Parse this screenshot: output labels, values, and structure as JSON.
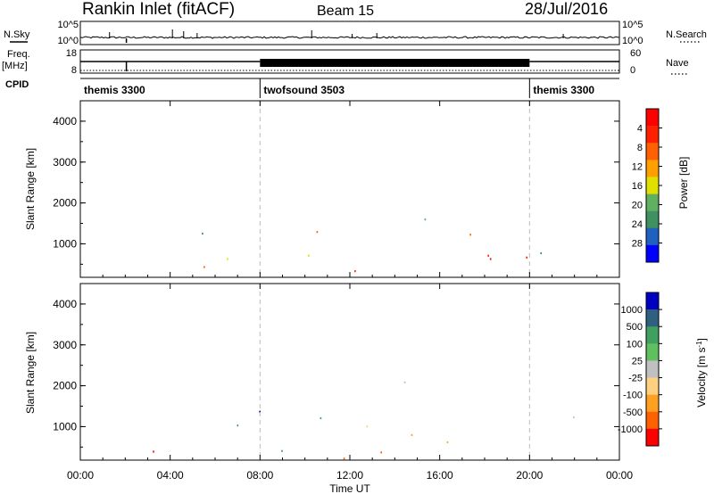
{
  "header": {
    "station": "Rankin Inlet (fitACF)",
    "beam": "Beam 15",
    "date": "28/Jul/2016"
  },
  "left_labels": {
    "nsky": "N.Sky",
    "freq": "Freq.",
    "freq_unit": "[MHz]",
    "cpid": "CPID"
  },
  "right_labels": {
    "nsearch": "N.Search",
    "nave": "Nave"
  },
  "noise_panel": {
    "left_ticks": [
      "10^5",
      "10^0"
    ],
    "right_ticks": [
      "10^5",
      "10^0"
    ]
  },
  "freq_panel": {
    "left_ticks": [
      "18",
      "8"
    ],
    "right_ticks": [
      "60",
      "0"
    ]
  },
  "cpid_segments": [
    {
      "label": "themis 3300",
      "start_hr": 0,
      "end_hr": 8
    },
    {
      "label": "twofsound 3503",
      "start_hr": 8,
      "end_hr": 20
    },
    {
      "label": "themis 3300",
      "start_hr": 20,
      "end_hr": 24
    }
  ],
  "colors": {
    "power": [
      "#0000ff",
      "#2060c0",
      "#409060",
      "#60b060",
      "#e0e000",
      "#ffa000",
      "#ff6000",
      "#ff2000",
      "#ff0000"
    ],
    "velocity": [
      "#ff0000",
      "#ff6000",
      "#ffa020",
      "#ffd080",
      "#c0c0c0",
      "#60c060",
      "#40a060",
      "#306080",
      "#0000c0"
    ]
  },
  "chart_data": [
    {
      "type": "heatmap",
      "name": "power",
      "ylabel": "Slant Range [km]",
      "ylim": [
        180,
        4500
      ],
      "xlim_hours": [
        0,
        24
      ],
      "y_ticks": [
        "1000",
        "2000",
        "3000",
        "4000"
      ],
      "colorbar_label": "Power [dB]",
      "colorbar_ticks": [
        "4",
        "8",
        "12",
        "16",
        "20",
        "24",
        "28"
      ]
    },
    {
      "type": "heatmap",
      "name": "velocity",
      "ylabel": "Slant Range [km]",
      "ylim": [
        180,
        4500
      ],
      "xlim_hours": [
        0,
        24
      ],
      "y_ticks": [
        "1000",
        "2000",
        "3000",
        "4000"
      ],
      "colorbar_label": "Velocity [m s",
      "colorbar_label_sup": "-1",
      "colorbar_label_end": "]",
      "colorbar_ticks": [
        "1000",
        "500",
        "100",
        "25",
        "-25",
        "-100",
        "-500",
        "-1000"
      ]
    }
  ],
  "x_axis": {
    "ticks": [
      "00:00",
      "04:00",
      "08:00",
      "12:00",
      "16:00",
      "20:00",
      "00:00"
    ],
    "label": "Time UT"
  }
}
